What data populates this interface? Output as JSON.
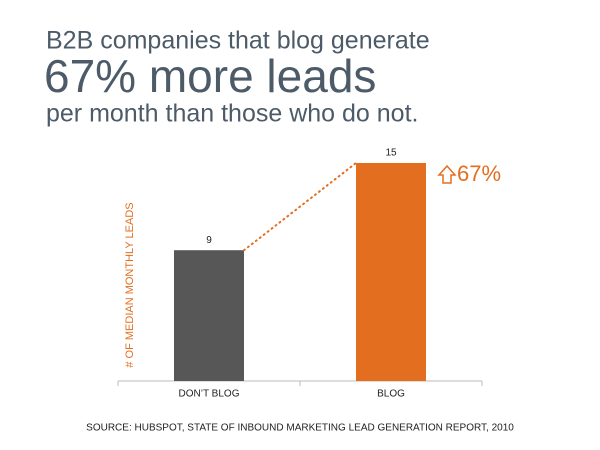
{
  "chart_data": {
    "type": "bar",
    "title": "B2B companies that blog generate",
    "headline": "67% more leads",
    "subtitle": "per month than those who do not.",
    "y_label": "# OF MEDIAN MONTHLY LEADS",
    "annotation": "67%",
    "source": "SOURCE: HUBSPOT, STATE OF INBOUND MARKETING LEAD GENERATION REPORT, 2010",
    "categories": [
      "DON’T BLOG",
      "BLOG"
    ],
    "values": [
      9,
      15
    ],
    "colors": [
      "#575757",
      "#e36e20"
    ],
    "ylim": [
      0,
      15
    ]
  }
}
